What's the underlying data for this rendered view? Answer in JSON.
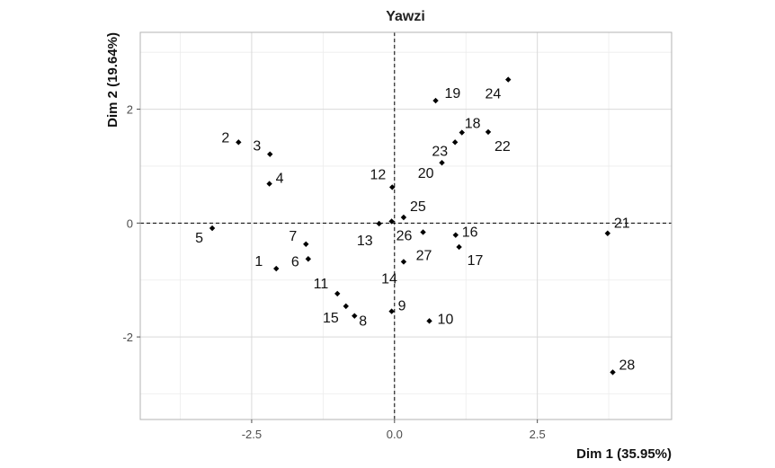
{
  "chart_data": {
    "type": "scatter",
    "title": "Yawzi",
    "xlabel": "Dim 1 (35.95%)",
    "ylabel": "Dim 2 (19.64%)",
    "xlim": [
      -4.45,
      4.85
    ],
    "ylim": [
      -3.45,
      3.35
    ],
    "xticks": [
      -2.5,
      0.0,
      2.5
    ],
    "xtick_labels": [
      "-2.5",
      "0.0",
      "2.5"
    ],
    "yticks": [
      -2,
      0,
      2
    ],
    "ytick_labels": [
      "-2",
      "0",
      "2"
    ],
    "grid": true,
    "reference_lines": {
      "x": 0,
      "y": 0,
      "style": "dashed"
    },
    "points": [
      {
        "label": "1",
        "x": -2.07,
        "y": -0.8
      },
      {
        "label": "2",
        "x": -2.73,
        "y": 1.42
      },
      {
        "label": "3",
        "x": -2.18,
        "y": 1.21
      },
      {
        "label": "4",
        "x": -2.19,
        "y": 0.69
      },
      {
        "label": "5",
        "x": -3.19,
        "y": -0.09
      },
      {
        "label": "6",
        "x": -1.51,
        "y": -0.63
      },
      {
        "label": "7",
        "x": -1.55,
        "y": -0.37
      },
      {
        "label": "8",
        "x": -0.7,
        "y": -1.63
      },
      {
        "label": "9",
        "x": -0.05,
        "y": -1.55
      },
      {
        "label": "10",
        "x": 0.61,
        "y": -1.72
      },
      {
        "label": "11",
        "x": -1.0,
        "y": -1.24
      },
      {
        "label": "12",
        "x": -0.04,
        "y": 0.63
      },
      {
        "label": "13",
        "x": -0.27,
        "y": -0.01
      },
      {
        "label": "14",
        "x": 0.16,
        "y": -0.68
      },
      {
        "label": "15",
        "x": -0.85,
        "y": -1.46
      },
      {
        "label": "16",
        "x": 1.07,
        "y": -0.21
      },
      {
        "label": "17",
        "x": 1.13,
        "y": -0.42
      },
      {
        "label": "18",
        "x": 1.18,
        "y": 1.59
      },
      {
        "label": "19",
        "x": 0.72,
        "y": 2.15
      },
      {
        "label": "20",
        "x": 0.83,
        "y": 1.06
      },
      {
        "label": "21",
        "x": 3.73,
        "y": -0.18
      },
      {
        "label": "22",
        "x": 1.64,
        "y": 1.6
      },
      {
        "label": "23",
        "x": 1.06,
        "y": 1.42
      },
      {
        "label": "24",
        "x": 1.99,
        "y": 2.52
      },
      {
        "label": "25",
        "x": 0.16,
        "y": 0.1
      },
      {
        "label": "26",
        "x": -0.05,
        "y": 0.03
      },
      {
        "label": "27",
        "x": 0.5,
        "y": -0.16
      },
      {
        "label": "28",
        "x": 3.82,
        "y": -2.62
      }
    ]
  }
}
